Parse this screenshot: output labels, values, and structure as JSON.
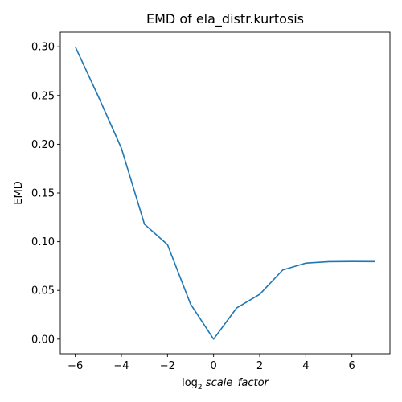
{
  "chart_data": {
    "type": "line",
    "title": "EMD of ela_distr.kurtosis",
    "xlabel_prefix": "log",
    "xlabel_subscript": "2",
    "xlabel_var": "scale_factor",
    "ylabel": "EMD",
    "xlim": [
      -6.65,
      7.65
    ],
    "ylim": [
      -0.015,
      0.315
    ],
    "xticks": [
      -6,
      -4,
      -2,
      0,
      2,
      4,
      6
    ],
    "xtick_labels": [
      "−6",
      "−4",
      "−2",
      "0",
      "2",
      "4",
      "6"
    ],
    "yticks": [
      0.0,
      0.05,
      0.1,
      0.15,
      0.2,
      0.25,
      0.3
    ],
    "ytick_labels": [
      "0.00",
      "0.05",
      "0.10",
      "0.15",
      "0.20",
      "0.25",
      "0.30"
    ],
    "grid": false,
    "series": [
      {
        "color": "#1f77b4",
        "x": [
          -6,
          -5,
          -4,
          -3,
          -2,
          -1,
          0,
          1,
          2,
          3,
          4,
          5,
          6,
          7
        ],
        "y": [
          0.3,
          0.249,
          0.196,
          0.118,
          0.097,
          0.036,
          0.0,
          0.032,
          0.046,
          0.071,
          0.078,
          0.0795,
          0.0797,
          0.0796
        ]
      }
    ]
  }
}
